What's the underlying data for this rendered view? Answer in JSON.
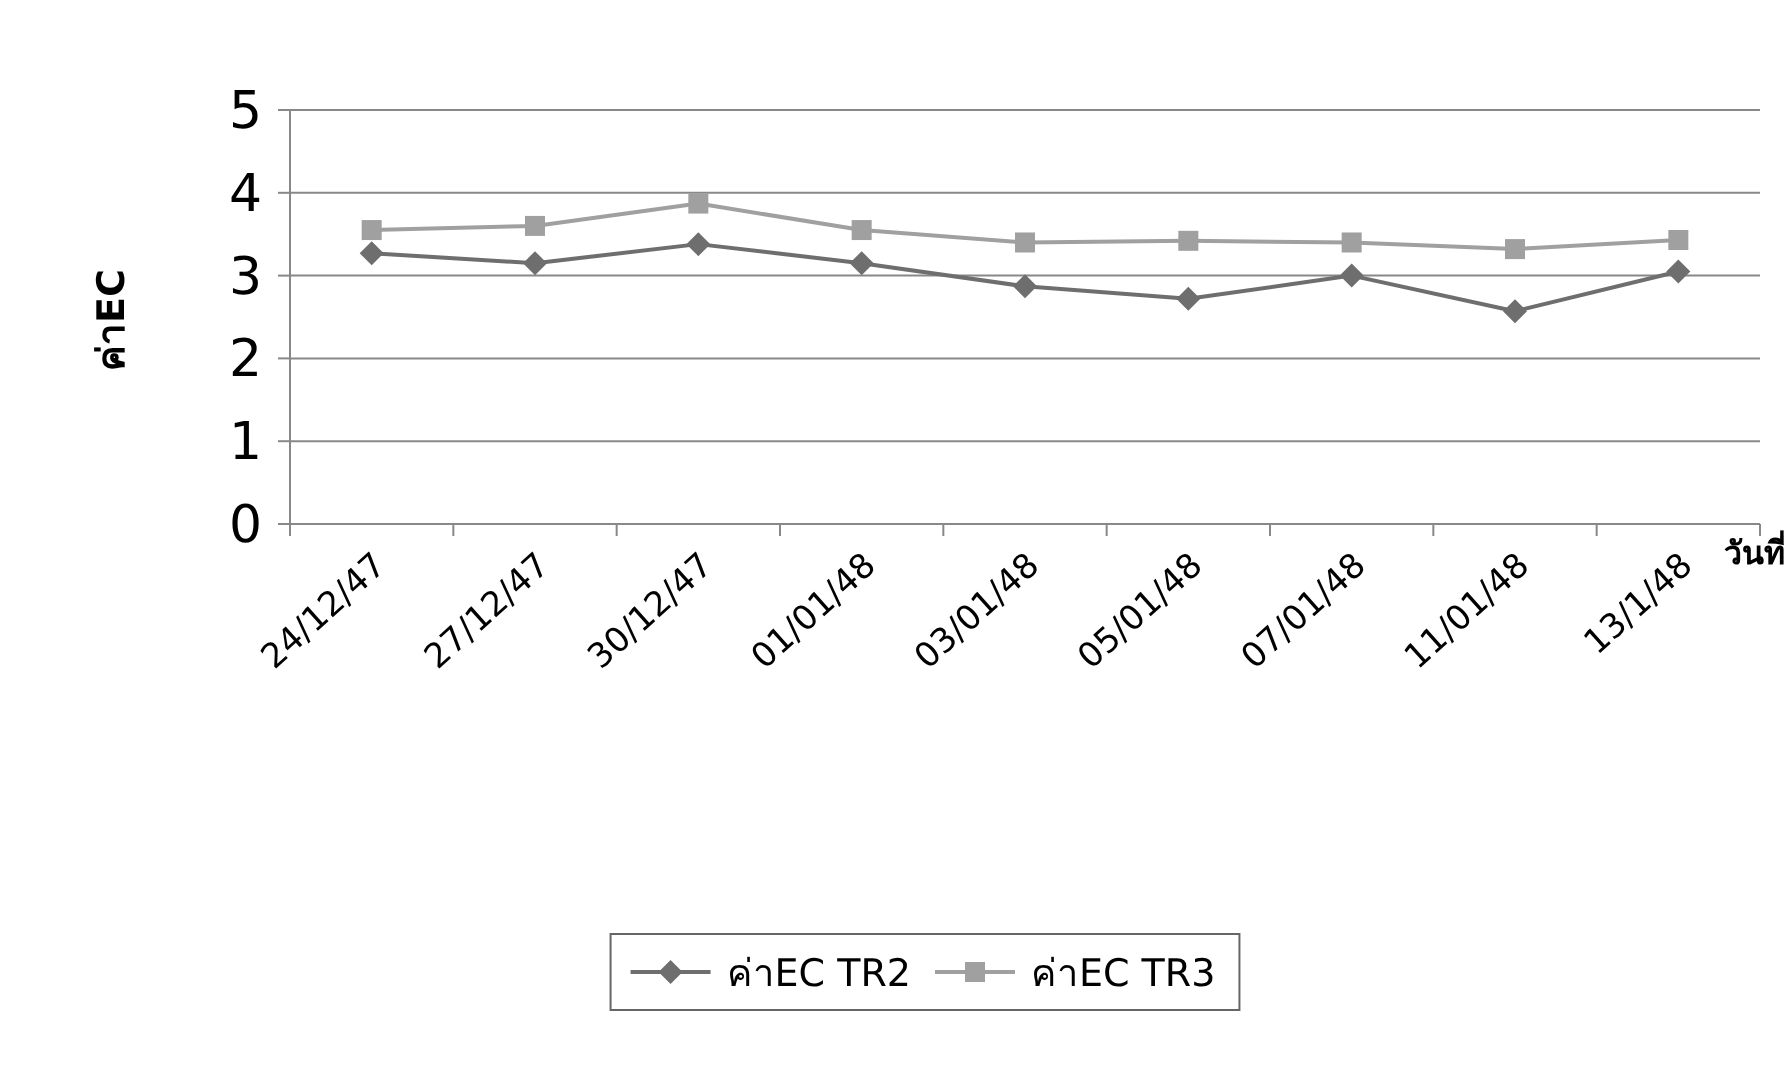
{
  "chart_data": {
    "type": "line",
    "xlabel": "วันที่",
    "ylabel": "ค่าEC",
    "categories": [
      "24/12/47",
      "27/12/47",
      "30/12/47",
      "01/01/48",
      "03/01/48",
      "05/01/48",
      "07/01/48",
      "11/01/48",
      "13/1/48"
    ],
    "series": [
      {
        "name": "ค่าEC TR2",
        "color": "#6e6e6e",
        "marker": "diamond",
        "values": [
          3.27,
          3.15,
          3.38,
          3.15,
          2.87,
          2.72,
          3.0,
          2.57,
          3.05
        ]
      },
      {
        "name": "ค่าEC TR3",
        "color": "#a0a0a0",
        "marker": "square",
        "values": [
          3.55,
          3.6,
          3.87,
          3.55,
          3.4,
          3.42,
          3.4,
          3.32,
          3.43
        ]
      }
    ],
    "ylim": [
      0,
      5
    ],
    "yticks": [
      0,
      1,
      2,
      3,
      4,
      5
    ],
    "grid": "y",
    "legend": "bottom",
    "line_style": "solid"
  }
}
